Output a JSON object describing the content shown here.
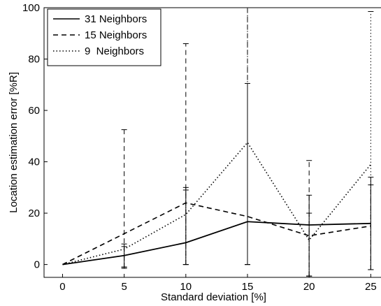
{
  "chart_data": {
    "type": "line",
    "xlabel": "Standard deviation [%]",
    "ylabel": "Location estimation error [%R]",
    "xlim": [
      -1.5,
      26
    ],
    "ylim": [
      -5,
      100
    ],
    "x_ticks": [
      0,
      5,
      10,
      15,
      20,
      25
    ],
    "y_ticks": [
      0,
      20,
      40,
      60,
      80,
      100
    ],
    "grid": false,
    "legend_position": "top-left",
    "series": [
      {
        "name": "31 Neighbors",
        "style": "solid",
        "x": [
          0,
          5,
          10,
          15,
          20,
          25
        ],
        "y": [
          0,
          3.5,
          8.5,
          16.7,
          15.4,
          16
        ],
        "err_low": [
          0,
          -1,
          0,
          0,
          -4.5,
          -2
        ],
        "err_high": [
          0,
          8,
          30,
          70.5,
          27,
          34
        ]
      },
      {
        "name": "15 Neighbors",
        "style": "dashed",
        "x": [
          0,
          5,
          10,
          15,
          20,
          25
        ],
        "y": [
          0,
          12,
          24,
          18.7,
          11.2,
          15
        ],
        "err_low": [
          0,
          -1.5,
          0,
          0,
          -4.5,
          -2
        ],
        "err_high": [
          0,
          52.5,
          86,
          100,
          40.5,
          31
        ]
      },
      {
        "name": "9  Neighbors",
        "style": "dotted",
        "x": [
          0,
          5,
          10,
          15,
          20,
          25
        ],
        "y": [
          0,
          6,
          19.5,
          47.5,
          9.5,
          39
        ],
        "err_low": [
          0,
          -1,
          0,
          0,
          -4.5,
          -2
        ],
        "err_high": [
          0,
          7,
          29,
          100,
          20,
          98.5
        ]
      }
    ]
  }
}
